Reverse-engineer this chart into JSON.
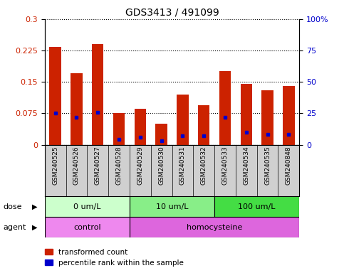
{
  "title": "GDS3413 / 491099",
  "samples": [
    "GSM240525",
    "GSM240526",
    "GSM240527",
    "GSM240528",
    "GSM240529",
    "GSM240530",
    "GSM240531",
    "GSM240532",
    "GSM240533",
    "GSM240534",
    "GSM240535",
    "GSM240848"
  ],
  "transformed_count": [
    0.233,
    0.17,
    0.24,
    0.075,
    0.085,
    0.05,
    0.12,
    0.095,
    0.175,
    0.145,
    0.13,
    0.14
  ],
  "percentile_rank_pct": [
    25,
    22,
    26,
    4,
    6,
    3,
    7,
    7,
    22,
    10,
    8,
    8
  ],
  "ylim_left": [
    0,
    0.3
  ],
  "ylim_right": [
    0,
    100
  ],
  "yticks_left": [
    0,
    0.075,
    0.15,
    0.225,
    0.3
  ],
  "yticks_right": [
    0,
    25,
    50,
    75,
    100
  ],
  "ytick_labels_left": [
    "0",
    "0.075",
    "0.15",
    "0.225",
    "0.3"
  ],
  "ytick_labels_right": [
    "0",
    "25",
    "50",
    "75",
    "100%"
  ],
  "bar_color": "#cc2200",
  "marker_color": "#0000cc",
  "dose_groups": [
    {
      "label": "0 um/L",
      "start": 0,
      "end": 4,
      "color": "#ccffcc"
    },
    {
      "label": "10 um/L",
      "start": 4,
      "end": 8,
      "color": "#88ee88"
    },
    {
      "label": "100 um/L",
      "start": 8,
      "end": 12,
      "color": "#44dd44"
    }
  ],
  "agent_groups": [
    {
      "label": "control",
      "start": 0,
      "end": 4,
      "color": "#ee88ee"
    },
    {
      "label": "homocysteine",
      "start": 4,
      "end": 12,
      "color": "#dd66dd"
    }
  ],
  "dose_label": "dose",
  "agent_label": "agent",
  "legend_entries": [
    "transformed count",
    "percentile rank within the sample"
  ],
  "background_color": "#ffffff",
  "tick_label_color_left": "#cc2200",
  "tick_label_color_right": "#0000cc",
  "xlabel_bg_color": "#d0d0d0",
  "plot_facecolor": "#ffffff"
}
